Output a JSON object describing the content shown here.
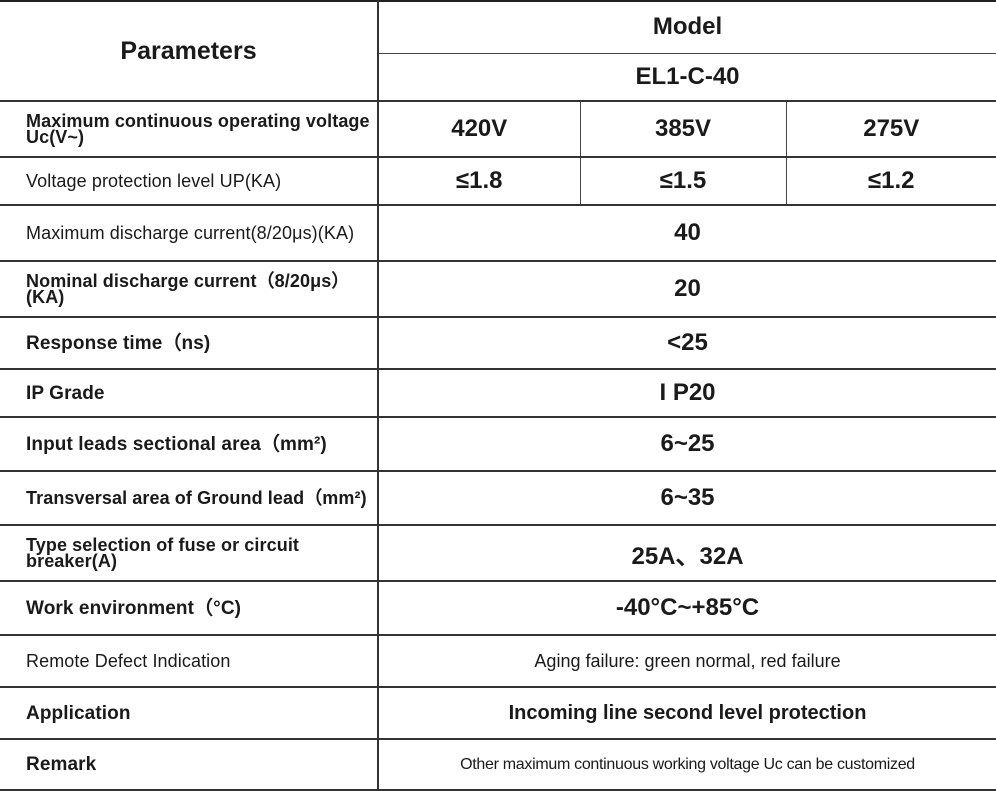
{
  "header": {
    "parameters_label": "Parameters",
    "model_label": "Model",
    "model_name": "EL1-C-40"
  },
  "rows": [
    {
      "param": "Maximum continuous operating voltage Uc(V~)",
      "values": [
        "420V",
        "385V",
        "275V"
      ]
    },
    {
      "param": "Voltage protection level UP(KA)",
      "values": [
        "≤1.8",
        "≤1.5",
        "≤1.2"
      ]
    },
    {
      "param": "Maximum discharge current(8/20μs)(KA)",
      "value": "40"
    },
    {
      "param": "Nominal discharge current（8/20μs）(KA)",
      "value": "20"
    },
    {
      "param": "Response time（ns)",
      "value": "<25"
    },
    {
      "param": "IP Grade",
      "value": "I P20"
    },
    {
      "param": "Input leads sectional area（mm²)",
      "value": "6~25"
    },
    {
      "param": "Transversal area of Ground lead（mm²)",
      "value": "6~35"
    },
    {
      "param": "Type selection of fuse or circuit breaker(A)",
      "value": "25A、32A"
    },
    {
      "param": "Work environment（°C)",
      "value": "-40°C~+85°C"
    },
    {
      "param": "Remote Defect Indication",
      "value": "Aging failure: green normal, red failure"
    },
    {
      "param": "Application",
      "value": "Incoming line second level protection"
    },
    {
      "param": "Remark",
      "value": "Other maximum continuous working voltage Uc can be customized"
    }
  ]
}
